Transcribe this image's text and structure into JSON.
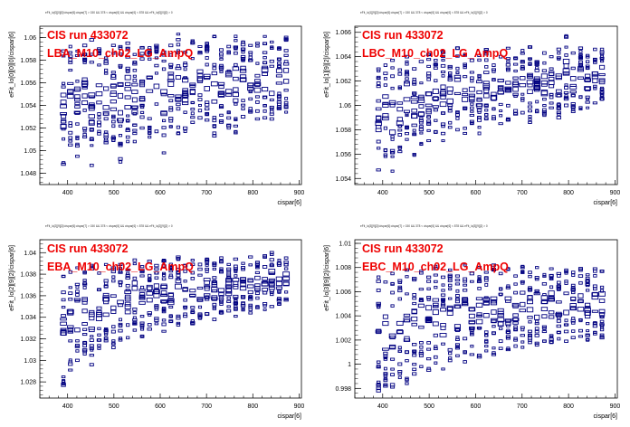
{
  "colors": {
    "marker": "#000080",
    "label": "#ee0000",
    "axis": "#000000",
    "background": "#ffffff"
  },
  "chart_data": [
    {
      "type": "scatter",
      "title": "eFit_lo[0][0][0]/cispar[6]:cispar[7] > 150 && 378 < cispar[6] && cispar[6] < 878 && eFit_lo[0][0][0] > 0",
      "annotations": [
        "CIS run 433072",
        "LBA_M10_ch02_LG_AmpQ"
      ],
      "xlabel": "cispar[6]",
      "ylabel": "eFit_lo[0][0][0]/cispar[6]",
      "xlim": [
        340,
        905
      ],
      "ylim": [
        1.047,
        1.061
      ],
      "xticks": [
        400,
        500,
        600,
        700,
        800,
        900
      ],
      "yticks": [
        1.048,
        1.05,
        1.052,
        1.054,
        1.056,
        1.058,
        1.06
      ],
      "ytick_labels": [
        "1.048",
        "1.05",
        "1.052",
        "1.054",
        "1.056",
        "1.058",
        "1.06"
      ],
      "columns": [
        {
          "x": 391,
          "ymin": 1.0488,
          "ymax": 1.0588
        },
        {
          "x": 406,
          "ymin": 1.0505,
          "ymax": 1.0592
        },
        {
          "x": 421,
          "ymin": 1.0495,
          "ymax": 1.0588
        },
        {
          "x": 437,
          "ymin": 1.0512,
          "ymax": 1.0593
        },
        {
          "x": 452,
          "ymin": 1.0487,
          "ymax": 1.0598
        },
        {
          "x": 468,
          "ymin": 1.0515,
          "ymax": 1.059
        },
        {
          "x": 483,
          "ymin": 1.0507,
          "ymax": 1.0582
        },
        {
          "x": 499,
          "ymin": 1.0509,
          "ymax": 1.0593
        },
        {
          "x": 514,
          "ymin": 1.049,
          "ymax": 1.0592
        },
        {
          "x": 530,
          "ymin": 1.0508,
          "ymax": 1.0595
        },
        {
          "x": 545,
          "ymin": 1.0508,
          "ymax": 1.0585
        },
        {
          "x": 561,
          "ymin": 1.052,
          "ymax": 1.0591
        },
        {
          "x": 577,
          "ymin": 1.0512,
          "ymax": 1.0591
        },
        {
          "x": 592,
          "ymin": 1.0517,
          "ymax": 1.0593
        },
        {
          "x": 608,
          "ymin": 1.0498,
          "ymax": 1.0587
        },
        {
          "x": 623,
          "ymin": 1.0521,
          "ymax": 1.0593
        },
        {
          "x": 639,
          "ymin": 1.0515,
          "ymax": 1.0603
        },
        {
          "x": 654,
          "ymin": 1.0517,
          "ymax": 1.0587
        },
        {
          "x": 670,
          "ymin": 1.0525,
          "ymax": 1.0597
        },
        {
          "x": 686,
          "ymin": 1.0529,
          "ymax": 1.0592
        },
        {
          "x": 701,
          "ymin": 1.0527,
          "ymax": 1.0595
        },
        {
          "x": 717,
          "ymin": 1.0513,
          "ymax": 1.0601
        },
        {
          "x": 732,
          "ymin": 1.0525,
          "ymax": 1.0589
        },
        {
          "x": 748,
          "ymin": 1.052,
          "ymax": 1.0592
        },
        {
          "x": 763,
          "ymin": 1.0516,
          "ymax": 1.0601
        },
        {
          "x": 779,
          "ymin": 1.053,
          "ymax": 1.0596
        },
        {
          "x": 795,
          "ymin": 1.0534,
          "ymax": 1.0593
        },
        {
          "x": 810,
          "ymin": 1.0528,
          "ymax": 1.0595
        },
        {
          "x": 826,
          "ymin": 1.0529,
          "ymax": 1.0601
        },
        {
          "x": 841,
          "ymin": 1.0528,
          "ymax": 1.0596
        },
        {
          "x": 857,
          "ymin": 1.0537,
          "ymax": 1.0591
        },
        {
          "x": 872,
          "ymin": 1.0534,
          "ymax": 1.06
        }
      ]
    },
    {
      "type": "scatter",
      "title": "eFit_lo[1][9][2]/cispar[6]:cispar[7] > 150 && 378 < cispar[6] && cispar[6] < 878 && eFit_lo[1][9][2] > 0",
      "annotations": [
        "CIS run 433072",
        "LBC_M10_ch02_LG_AmpQ"
      ],
      "xlabel": "cispar[6]",
      "ylabel": "eFit_lo[1][9][2]/cispar[6]",
      "xlim": [
        340,
        905
      ],
      "ylim": [
        1.0535,
        1.0665
      ],
      "xticks": [
        400,
        500,
        600,
        700,
        800,
        900
      ],
      "yticks": [
        1.054,
        1.056,
        1.058,
        1.06,
        1.062,
        1.064,
        1.066
      ],
      "ytick_labels": [
        "1.054",
        "1.056",
        "1.058",
        "1.06",
        "1.062",
        "1.064",
        "1.066"
      ],
      "columns": [
        {
          "x": 391,
          "ymin": 1.0547,
          "ymax": 1.063
        },
        {
          "x": 406,
          "ymin": 1.0558,
          "ymax": 1.0633
        },
        {
          "x": 421,
          "ymin": 1.0546,
          "ymax": 1.0637
        },
        {
          "x": 437,
          "ymin": 1.0562,
          "ymax": 1.0629
        },
        {
          "x": 452,
          "ymin": 1.0572,
          "ymax": 1.064
        },
        {
          "x": 468,
          "ymin": 1.0559,
          "ymax": 1.063
        },
        {
          "x": 483,
          "ymin": 1.0568,
          "ymax": 1.0636
        },
        {
          "x": 499,
          "ymin": 1.0571,
          "ymax": 1.0642
        },
        {
          "x": 514,
          "ymin": 1.0578,
          "ymax": 1.0637
        },
        {
          "x": 530,
          "ymin": 1.0571,
          "ymax": 1.0644
        },
        {
          "x": 545,
          "ymin": 1.0582,
          "ymax": 1.0632
        },
        {
          "x": 561,
          "ymin": 1.058,
          "ymax": 1.0647
        },
        {
          "x": 577,
          "ymin": 1.0577,
          "ymax": 1.0642
        },
        {
          "x": 592,
          "ymin": 1.0585,
          "ymax": 1.0637
        },
        {
          "x": 608,
          "ymin": 1.0577,
          "ymax": 1.0641
        },
        {
          "x": 623,
          "ymin": 1.0589,
          "ymax": 1.0646
        },
        {
          "x": 639,
          "ymin": 1.0589,
          "ymax": 1.0633
        },
        {
          "x": 654,
          "ymin": 1.0585,
          "ymax": 1.064
        },
        {
          "x": 670,
          "ymin": 1.0588,
          "ymax": 1.0647
        },
        {
          "x": 686,
          "ymin": 1.0593,
          "ymax": 1.0639
        },
        {
          "x": 701,
          "ymin": 1.0594,
          "ymax": 1.0645
        },
        {
          "x": 717,
          "ymin": 1.0586,
          "ymax": 1.0648
        },
        {
          "x": 732,
          "ymin": 1.0595,
          "ymax": 1.0636
        },
        {
          "x": 748,
          "ymin": 1.0592,
          "ymax": 1.0643
        },
        {
          "x": 763,
          "ymin": 1.0598,
          "ymax": 1.064
        },
        {
          "x": 779,
          "ymin": 1.059,
          "ymax": 1.0646
        },
        {
          "x": 795,
          "ymin": 1.06,
          "ymax": 1.0657
        },
        {
          "x": 810,
          "ymin": 1.0595,
          "ymax": 1.0643
        },
        {
          "x": 826,
          "ymin": 1.0597,
          "ymax": 1.0647
        },
        {
          "x": 841,
          "ymin": 1.0598,
          "ymax": 1.0641
        },
        {
          "x": 857,
          "ymin": 1.0602,
          "ymax": 1.0646
        },
        {
          "x": 872,
          "ymin": 1.0605,
          "ymax": 1.0646
        }
      ]
    },
    {
      "type": "scatter",
      "title": "eFit_lo[2][9][2]/cispar[6]:cispar[7] > 150 && 378 < cispar[6] && cispar[6] < 878 && eFit_lo[2][9][2] > 0",
      "annotations": [
        "CIS run 433072",
        "EBA_M10_ch02_LG_AmpQ"
      ],
      "xlabel": "cispar[6]",
      "ylabel": "eFit_lo[2][9][2]/cispar[6]",
      "xlim": [
        340,
        905
      ],
      "ylim": [
        1.0265,
        1.0412
      ],
      "xticks": [
        400,
        500,
        600,
        700,
        800,
        900
      ],
      "yticks": [
        1.028,
        1.03,
        1.032,
        1.034,
        1.036,
        1.038,
        1.04
      ],
      "ytick_labels": [
        "1.028",
        "1.03",
        "1.032",
        "1.034",
        "1.036",
        "1.038",
        "1.04"
      ],
      "columns": [
        {
          "x": 391,
          "ymin": 1.0277,
          "ymax": 1.0378
        },
        {
          "x": 406,
          "ymin": 1.0291,
          "ymax": 1.0382
        },
        {
          "x": 421,
          "ymin": 1.03,
          "ymax": 1.0386
        },
        {
          "x": 437,
          "ymin": 1.0306,
          "ymax": 1.0382
        },
        {
          "x": 452,
          "ymin": 1.0296,
          "ymax": 1.0388
        },
        {
          "x": 468,
          "ymin": 1.0311,
          "ymax": 1.0381
        },
        {
          "x": 483,
          "ymin": 1.0318,
          "ymax": 1.0389
        },
        {
          "x": 499,
          "ymin": 1.0312,
          "ymax": 1.0386
        },
        {
          "x": 514,
          "ymin": 1.0319,
          "ymax": 1.0389
        },
        {
          "x": 530,
          "ymin": 1.0321,
          "ymax": 1.0384
        },
        {
          "x": 545,
          "ymin": 1.0328,
          "ymax": 1.0393
        },
        {
          "x": 561,
          "ymin": 1.0322,
          "ymax": 1.0387
        },
        {
          "x": 577,
          "ymin": 1.0329,
          "ymax": 1.0392
        },
        {
          "x": 592,
          "ymin": 1.0334,
          "ymax": 1.0388
        },
        {
          "x": 608,
          "ymin": 1.0327,
          "ymax": 1.0393
        },
        {
          "x": 623,
          "ymin": 1.0336,
          "ymax": 1.0389
        },
        {
          "x": 639,
          "ymin": 1.0333,
          "ymax": 1.0396
        },
        {
          "x": 654,
          "ymin": 1.0341,
          "ymax": 1.0388
        },
        {
          "x": 670,
          "ymin": 1.0334,
          "ymax": 1.0393
        },
        {
          "x": 686,
          "ymin": 1.0339,
          "ymax": 1.0389
        },
        {
          "x": 701,
          "ymin": 1.0343,
          "ymax": 1.0394
        },
        {
          "x": 717,
          "ymin": 1.0338,
          "ymax": 1.039
        },
        {
          "x": 732,
          "ymin": 1.0344,
          "ymax": 1.0395
        },
        {
          "x": 748,
          "ymin": 1.0346,
          "ymax": 1.0389
        },
        {
          "x": 763,
          "ymin": 1.0341,
          "ymax": 1.0394
        },
        {
          "x": 779,
          "ymin": 1.0347,
          "ymax": 1.039
        },
        {
          "x": 795,
          "ymin": 1.0344,
          "ymax": 1.0396
        },
        {
          "x": 810,
          "ymin": 1.0349,
          "ymax": 1.0391
        },
        {
          "x": 826,
          "ymin": 1.0347,
          "ymax": 1.0397
        },
        {
          "x": 841,
          "ymin": 1.035,
          "ymax": 1.04
        },
        {
          "x": 857,
          "ymin": 1.0352,
          "ymax": 1.0393
        },
        {
          "x": 872,
          "ymin": 1.0356,
          "ymax": 1.0395
        }
      ]
    },
    {
      "type": "scatter",
      "title": "eFit_lo[3][9][2]/cispar[6]:cispar[7] > 150 && 378 < cispar[6] && cispar[6] < 878 && eFit_lo[3][9][2] > 0",
      "annotations": [
        "CIS run 433072",
        "EBC_M10_ch02_LG_AmpQ"
      ],
      "xlabel": "cispar[6]",
      "ylabel": "eFit_lo[3][9][2]/cispar[6]",
      "xlim": [
        340,
        905
      ],
      "ylim": [
        0.9972,
        1.0103
      ],
      "xticks": [
        400,
        500,
        600,
        700,
        800,
        900
      ],
      "yticks": [
        0.998,
        1.0,
        1.002,
        1.004,
        1.006,
        1.008,
        1.01
      ],
      "ytick_labels": [
        "0.998",
        "1",
        "1.002",
        "1.004",
        "1.006",
        "1.008",
        "1.01"
      ],
      "columns": [
        {
          "x": 391,
          "ymin": 0.9978,
          "ymax": 1.0072
        },
        {
          "x": 406,
          "ymin": 0.9982,
          "ymax": 1.0068
        },
        {
          "x": 421,
          "ymin": 0.9981,
          "ymax": 1.0075
        },
        {
          "x": 437,
          "ymin": 0.9989,
          "ymax": 1.0069
        },
        {
          "x": 452,
          "ymin": 0.9984,
          "ymax": 1.0078
        },
        {
          "x": 468,
          "ymin": 0.9992,
          "ymax": 1.0071
        },
        {
          "x": 483,
          "ymin": 0.9998,
          "ymax": 1.0077
        },
        {
          "x": 499,
          "ymin": 0.9995,
          "ymax": 1.0072
        },
        {
          "x": 514,
          "ymin": 1.0001,
          "ymax": 1.0081
        },
        {
          "x": 530,
          "ymin": 0.9996,
          "ymax": 1.0072
        },
        {
          "x": 545,
          "ymin": 1.0003,
          "ymax": 1.0078
        },
        {
          "x": 561,
          "ymin": 1.0007,
          "ymax": 1.0073
        },
        {
          "x": 577,
          "ymin": 1.0002,
          "ymax": 1.0082
        },
        {
          "x": 592,
          "ymin": 1.0008,
          "ymax": 1.0075
        },
        {
          "x": 608,
          "ymin": 1.0006,
          "ymax": 1.008
        },
        {
          "x": 623,
          "ymin": 1.0011,
          "ymax": 1.0076
        },
        {
          "x": 639,
          "ymin": 1.0008,
          "ymax": 1.0082
        },
        {
          "x": 654,
          "ymin": 1.0013,
          "ymax": 1.0075
        },
        {
          "x": 670,
          "ymin": 1.0012,
          "ymax": 1.0079
        },
        {
          "x": 686,
          "ymin": 1.0015,
          "ymax": 1.0073
        },
        {
          "x": 701,
          "ymin": 1.0014,
          "ymax": 1.0081
        },
        {
          "x": 717,
          "ymin": 1.0018,
          "ymax": 1.0076
        },
        {
          "x": 732,
          "ymin": 1.0016,
          "ymax": 1.008
        },
        {
          "x": 748,
          "ymin": 1.0019,
          "ymax": 1.0074
        },
        {
          "x": 763,
          "ymin": 1.0018,
          "ymax": 1.0079
        },
        {
          "x": 779,
          "ymin": 1.0021,
          "ymax": 1.0075
        },
        {
          "x": 795,
          "ymin": 1.0019,
          "ymax": 1.0078
        },
        {
          "x": 810,
          "ymin": 1.0022,
          "ymax": 1.0076
        },
        {
          "x": 826,
          "ymin": 1.0023,
          "ymax": 1.0079
        },
        {
          "x": 841,
          "ymin": 1.002,
          "ymax": 1.0074
        },
        {
          "x": 857,
          "ymin": 1.0025,
          "ymax": 1.0079
        },
        {
          "x": 872,
          "ymin": 1.0022,
          "ymax": 1.0077
        }
      ]
    }
  ]
}
